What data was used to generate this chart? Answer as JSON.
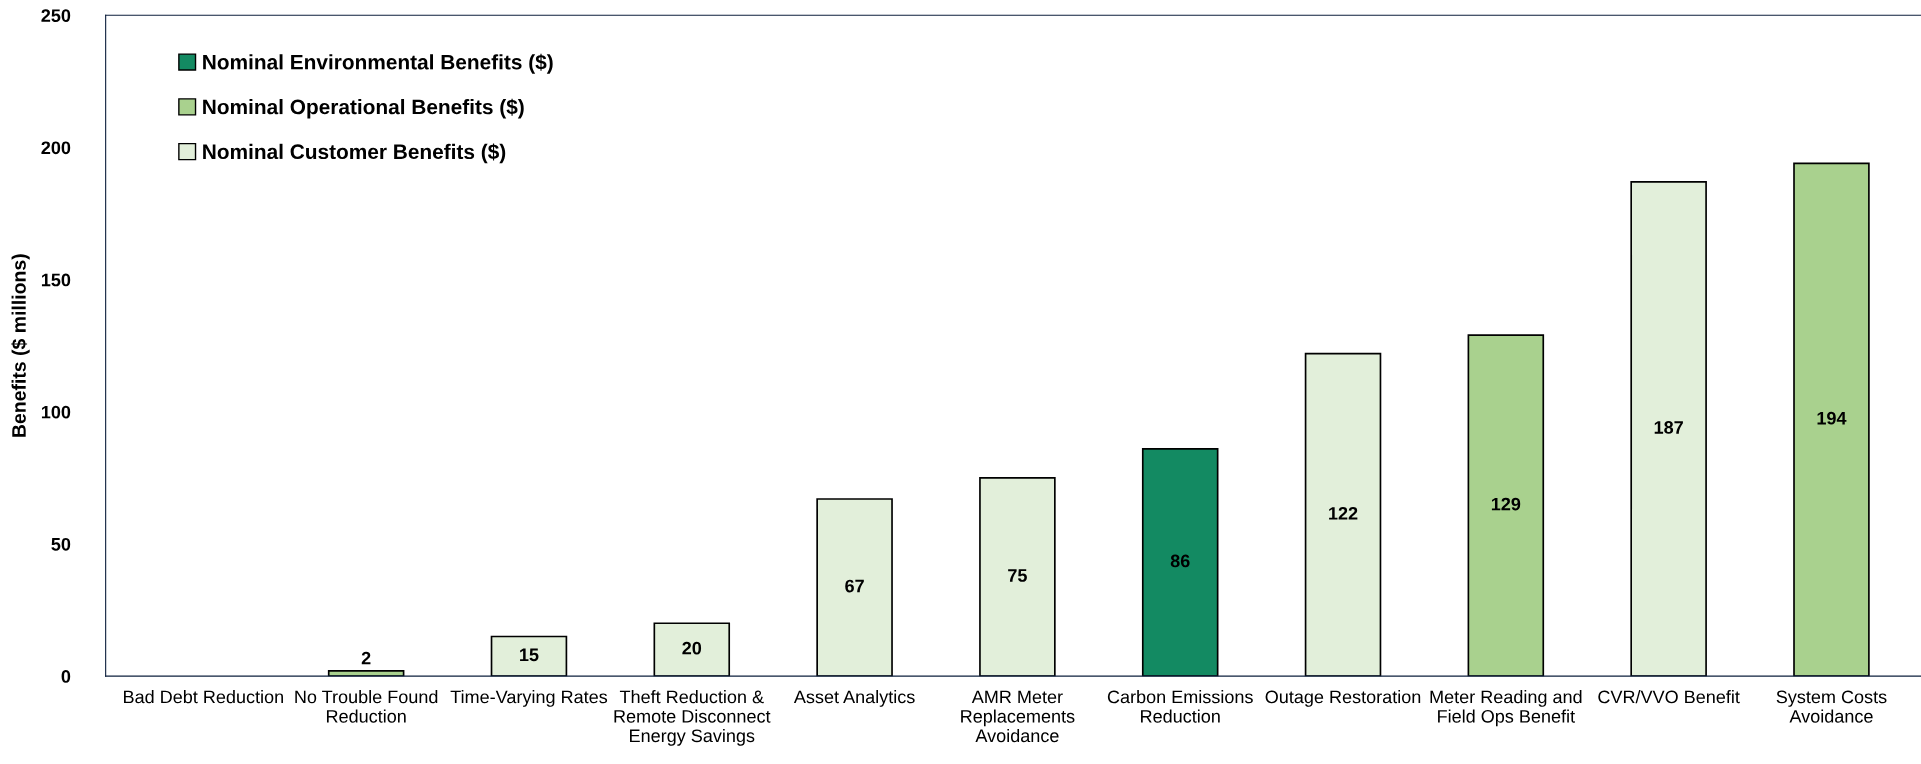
{
  "chart_data": {
    "type": "bar",
    "ylabel": "Benefits ($ millions)",
    "categories": [
      "Bad Debt Reduction",
      "No Trouble Found\nReduction",
      "Time-Varying Rates",
      "Theft Reduction &\nRemote Disconnect\nEnergy Savings",
      "Asset Analytics",
      "AMR Meter\nReplacements\nAvoidance",
      "Carbon Emissions\nReduction",
      "Outage Restoration",
      "Meter Reading and\nField Ops Benefit",
      "CVR/VVO Benefit",
      "System Costs\nAvoidance"
    ],
    "series": [
      {
        "name": "Nominal Environmental Benefits ($)",
        "color": "#138a62",
        "values": [
          null,
          null,
          null,
          null,
          null,
          null,
          86,
          null,
          null,
          null,
          null
        ],
        "value_labels": [
          null,
          null,
          null,
          null,
          null,
          null,
          "86",
          null,
          null,
          null,
          null
        ]
      },
      {
        "name": "Nominal Operational Benefits ($)",
        "color": "#a9d18e",
        "values": [
          null,
          2,
          null,
          null,
          null,
          null,
          null,
          null,
          129,
          null,
          194
        ],
        "value_labels": [
          null,
          "2",
          null,
          null,
          null,
          null,
          null,
          null,
          "129",
          null,
          "194"
        ]
      },
      {
        "name": "Nominal Customer Benefits ($)",
        "color": "#e2efda",
        "values": [
          null,
          null,
          15,
          20,
          67,
          75,
          null,
          122,
          null,
          187,
          null
        ],
        "value_labels": [
          null,
          null,
          "15",
          "20",
          "67",
          "75",
          null,
          "122",
          null,
          "187",
          null
        ]
      }
    ],
    "ylim": [
      0,
      250
    ],
    "yticks": [
      0,
      50,
      100,
      150,
      200,
      250
    ],
    "grid": false,
    "legend": "top left"
  }
}
